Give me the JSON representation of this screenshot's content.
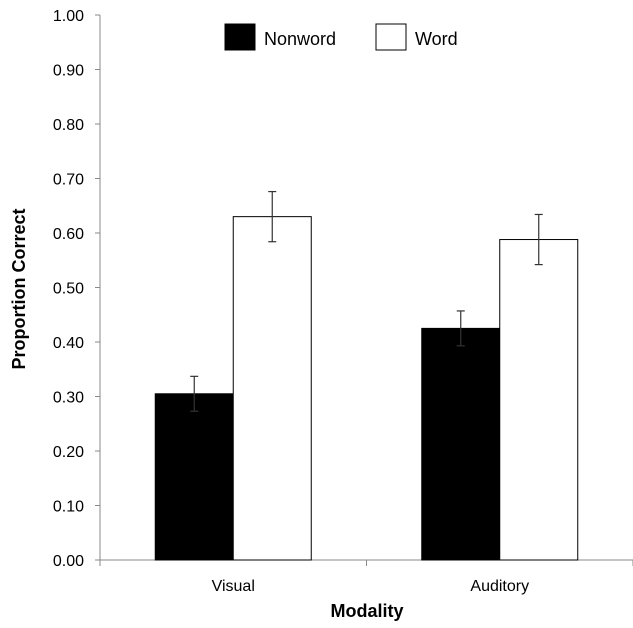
{
  "chart_data": {
    "type": "bar",
    "title": "",
    "xlabel": "Modality",
    "ylabel": "Proportion Correct",
    "categories": [
      "Visual",
      "Auditory"
    ],
    "ylim": [
      0,
      1
    ],
    "yticks": [
      "0.00",
      "0.10",
      "0.20",
      "0.30",
      "0.40",
      "0.50",
      "0.60",
      "0.70",
      "0.80",
      "0.90",
      "1.00"
    ],
    "grid": false,
    "legend_position": "top-center",
    "series": [
      {
        "name": "Nonword",
        "color": "#000000",
        "values": [
          0.305,
          0.425
        ],
        "error": [
          0.032,
          0.032
        ]
      },
      {
        "name": "Word",
        "color": "#ffffff",
        "values": [
          0.63,
          0.588
        ],
        "error": [
          0.046,
          0.046
        ]
      }
    ]
  }
}
